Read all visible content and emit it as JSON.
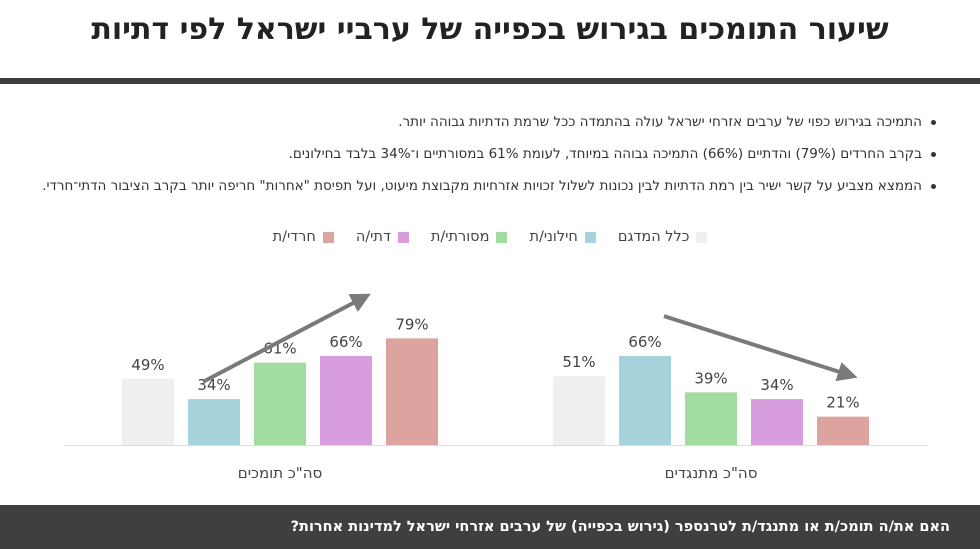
{
  "title": "שיעור התומכים בגירוש בכפייה של ערביי ישראל לפי דתיות",
  "bullets": [
    "התמיכה בגירוש כפוי של ערבים אזרחי ישראל עולה בהתמדה ככל שרמת הדתיות גבוהה יותר.",
    "בקרב החרדים (79%) והדתיים (66%) התמיכה גבוהה במיוחד, לעומת 61% במסורתיים ו־34% בלבד בחילונים.",
    "הממצא מצביע על קשר ישיר בין רמת הדתיות לבין נכונות לשלול זכויות אזרחיות מקבוצת מיעוט, ועל תפיסת \"אחרות\" חריפה יותר בקרב הציבור הדתי־חרדי."
  ],
  "footer": "האם את/ה תומכ/ת או מתנגד/ת לטרנספר (גירוש בכפייה) של ערבים אזרחי ישראל למדינות אחרות?",
  "chart_data": {
    "type": "bar",
    "categories": [
      "סה\"כ תומכים",
      "סה\"כ מתנגדים"
    ],
    "series": [
      {
        "name": "כלל המדגם",
        "color": "#efefef",
        "values": [
          49,
          51
        ],
        "labels": [
          "49%",
          "51%"
        ]
      },
      {
        "name": "חילוני/ת",
        "color": "#a6d3db",
        "values": [
          34,
          66
        ],
        "labels": [
          "34%",
          "66%"
        ]
      },
      {
        "name": "מסורתי/ת",
        "color": "#a3dca0",
        "values": [
          61,
          39
        ],
        "labels": [
          "61%",
          "39%"
        ]
      },
      {
        "name": "דתי/ה",
        "color": "#d79ddd",
        "values": [
          66,
          34
        ],
        "labels": [
          "66%",
          "34%"
        ]
      },
      {
        "name": "חרדי/ת",
        "color": "#dca39f",
        "values": [
          79,
          21
        ],
        "labels": [
          "79%",
          "21%"
        ]
      }
    ],
    "ylim": [
      0,
      100
    ],
    "legend_position": "top-center",
    "trend_arrows": [
      "up",
      "down"
    ]
  }
}
